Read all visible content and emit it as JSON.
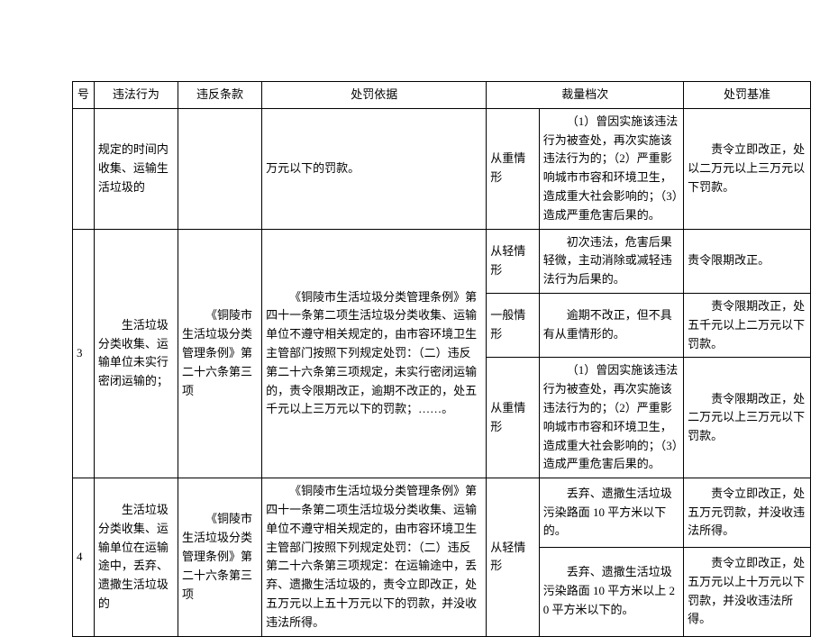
{
  "header": {
    "col0": "号",
    "col1": "违法行为",
    "col2": "违反条款",
    "col3": "处罚依据",
    "col4": "裁量档次",
    "col6": "处罚基准"
  },
  "rows": {
    "r2_prev": {
      "act": "规定的时间内收集、运输生活垃圾的",
      "basis": "万元以下的罚款。",
      "level": "从重情形",
      "detail": "（1）曾因实施该违法行为被查处，再次实施该违法行为的；（2）严重影响城市市容和环境卫生，造成重大社会影响的；（3）造成严重危害后果的。",
      "penal": "责令立即改正，处以二万元以上三万元以下罚款。"
    },
    "r3": {
      "num": "3",
      "act": "生活垃圾分类收集、运输单位未实行密闭运输的；",
      "clause": "《铜陵市生活垃圾分类管理条例》第二十六条第三项",
      "basis": "《铜陵市生活垃圾分类管理条例》第四十一条第二项生活垃圾分类收集、运输单位不遵守相关规定的，由市容环境卫生主管部门按照下列规定处罚：（二）违反第二十六条第三项规定，未实行密闭运输的，责令限期改正，逾期不改正的，处五千元以上三万元以下的罚款；……。",
      "lv1": {
        "level": "从轻情形",
        "detail": "初次违法，危害后果轻微，主动消除或减轻违法行为后果的。",
        "penal": "责令限期改正。"
      },
      "lv2": {
        "level": "一般情形",
        "detail": "逾期不改正，但不具有从重情形的。",
        "penal": "责令限期改正，处五千元以上二万元以下罚款。"
      },
      "lv3": {
        "level": "从重情形",
        "detail": "（1）曾因实施该违法行为被查处，再次实施该违法行为的；（2）严重影响城市市容和环境卫生，造成重大社会影响的；（3）造成严重危害后果的。",
        "penal": "责令限期改正，处二万元以上三万元以下罚款。"
      }
    },
    "r4": {
      "num": "4",
      "act": "生活垃圾分类收集、运输单位在运输途中，丢弃、遗撒生活垃圾的",
      "clause": "《铜陵市生活垃圾分类管理条例》第二十六条第三项",
      "basis": "《铜陵市生活垃圾分类管理条例》第四十一条第二项生活垃圾分类收集、运输单位不遵守相关规定的，由市容环境卫生主管部门按照下列规定处罚：（二）违反第二十六条第三项规定：在运输途中，丢弃、遗撒生活垃圾的，责令立即改正，处五万元以上五十万元以下的罚款，并没收违法所得。",
      "level": "从轻情形",
      "lv1": {
        "detail": "丢弃、遗撒生活垃圾污染路面 10 平方米以下的。",
        "penal": "责令立即改正，处五万元罚款，并没收违法所得。"
      },
      "lv2": {
        "detail": "丢弃、遗撒生活垃圾污染路面 10 平方米以上 20 平方米以下的。",
        "penal": "责令立即改正，处五万元以上十万元以下罚款，并没收违法所得。"
      }
    }
  },
  "style": {
    "font_family": "SimSun",
    "font_size_pt": 10,
    "border_color": "#000000",
    "background": "#ffffff",
    "text_color": "#000000"
  }
}
